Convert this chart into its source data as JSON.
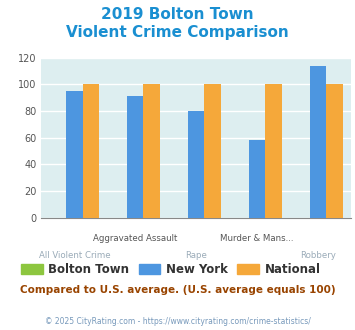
{
  "title_line1": "2019 Bolton Town",
  "title_line2": "Violent Crime Comparison",
  "top_labels": [
    "",
    "Aggravated Assault",
    "",
    "Murder & Mans...",
    ""
  ],
  "bottom_labels": [
    "All Violent Crime",
    "",
    "Rape",
    "",
    "Robbery"
  ],
  "bolton_town": [
    0,
    0,
    0,
    0,
    0
  ],
  "new_york": [
    95,
    91,
    80,
    58,
    114
  ],
  "national": [
    100,
    100,
    100,
    100,
    100
  ],
  "color_bolton": "#8dc63f",
  "color_newyork": "#4d96e0",
  "color_national": "#f5a83a",
  "ylim": [
    0,
    120
  ],
  "yticks": [
    0,
    20,
    40,
    60,
    80,
    100,
    120
  ],
  "bg_color": "#ddeef0",
  "title_color": "#1a8fd1",
  "label_top_color": "#555555",
  "label_bot_color": "#9aabb8",
  "subtitle_text": "Compared to U.S. average. (U.S. average equals 100)",
  "subtitle_color": "#994400",
  "footer_text": "© 2025 CityRating.com - https://www.cityrating.com/crime-statistics/",
  "footer_color": "#7799bb",
  "legend_label_color": "#333333"
}
